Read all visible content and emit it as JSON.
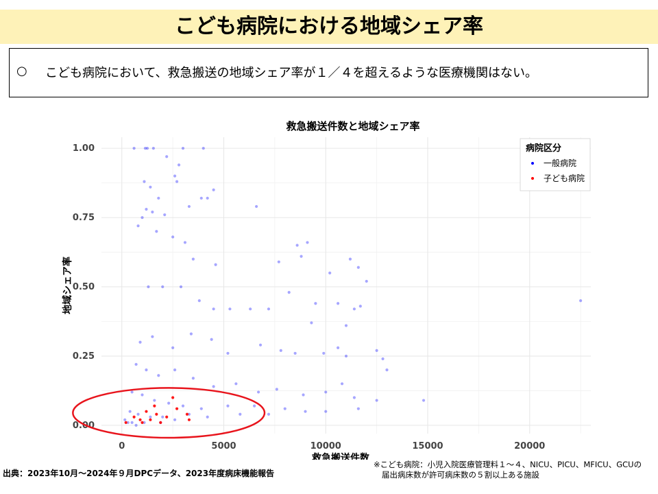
{
  "header": {
    "title": "こども病院における地域シェア率"
  },
  "notice": {
    "bullet": "○",
    "text": "こども病院において、救急搬送の地域シェア率が１／４を超えるような医療機関はない。"
  },
  "chart_data": {
    "type": "scatter",
    "title": "救急搬送件数と地域シェア率",
    "xlabel": "救急搬送件数",
    "ylabel": "地域シェア率",
    "xlim": [
      -1000,
      23000
    ],
    "ylim": [
      -0.03,
      1.04
    ],
    "x_ticks": [
      0,
      5000,
      10000,
      15000,
      20000
    ],
    "x_tick_labels": [
      "0",
      "5000",
      "10000",
      "15000",
      "20000"
    ],
    "y_ticks": [
      0,
      0.25,
      0.5,
      0.75,
      1.0
    ],
    "y_tick_labels": [
      "0.00",
      "0.25",
      "0.50",
      "0.75",
      "1.00"
    ],
    "grid": true,
    "legend": {
      "title": "病院区分",
      "placement": "top-right",
      "entries": [
        "一般病院",
        "子ども病院"
      ]
    },
    "series": [
      {
        "name": "一般病院",
        "color": "#0000ff",
        "points": [
          [
            600,
            1.0
          ],
          [
            1150,
            1.0
          ],
          [
            1250,
            1.0
          ],
          [
            1550,
            1.0
          ],
          [
            3000,
            1.0
          ],
          [
            4000,
            1.0
          ],
          [
            2200,
            0.97
          ],
          [
            2800,
            0.94
          ],
          [
            2700,
            0.88
          ],
          [
            2600,
            0.9
          ],
          [
            1100,
            0.88
          ],
          [
            1400,
            0.86
          ],
          [
            4500,
            0.85
          ],
          [
            1800,
            0.82
          ],
          [
            3900,
            0.82
          ],
          [
            4200,
            0.82
          ],
          [
            3300,
            0.79
          ],
          [
            6600,
            0.79
          ],
          [
            1200,
            0.78
          ],
          [
            1500,
            0.77
          ],
          [
            2100,
            0.76
          ],
          [
            1000,
            0.75
          ],
          [
            800,
            0.72
          ],
          [
            1700,
            0.7
          ],
          [
            2500,
            0.68
          ],
          [
            3100,
            0.66
          ],
          [
            3500,
            0.6
          ],
          [
            4600,
            0.58
          ],
          [
            7700,
            0.59
          ],
          [
            8600,
            0.65
          ],
          [
            9100,
            0.66
          ],
          [
            8800,
            0.61
          ],
          [
            11200,
            0.6
          ],
          [
            10200,
            0.55
          ],
          [
            11600,
            0.57
          ],
          [
            12000,
            0.52
          ],
          [
            1300,
            0.5
          ],
          [
            2000,
            0.5
          ],
          [
            2900,
            0.5
          ],
          [
            3800,
            0.45
          ],
          [
            4500,
            0.42
          ],
          [
            5300,
            0.42
          ],
          [
            6300,
            0.42
          ],
          [
            7200,
            0.42
          ],
          [
            8200,
            0.48
          ],
          [
            9500,
            0.44
          ],
          [
            10600,
            0.44
          ],
          [
            11700,
            0.43
          ],
          [
            9300,
            0.37
          ],
          [
            11400,
            0.42
          ],
          [
            11000,
            0.36
          ],
          [
            900,
            0.3
          ],
          [
            1500,
            0.32
          ],
          [
            2500,
            0.28
          ],
          [
            3400,
            0.33
          ],
          [
            4400,
            0.31
          ],
          [
            5200,
            0.26
          ],
          [
            6800,
            0.29
          ],
          [
            7800,
            0.27
          ],
          [
            8500,
            0.26
          ],
          [
            9900,
            0.26
          ],
          [
            10600,
            0.28
          ],
          [
            11000,
            0.25
          ],
          [
            12500,
            0.27
          ],
          [
            12800,
            0.24
          ],
          [
            13000,
            0.2
          ],
          [
            700,
            0.22
          ],
          [
            1200,
            0.2
          ],
          [
            1800,
            0.18
          ],
          [
            2600,
            0.2
          ],
          [
            3500,
            0.17
          ],
          [
            4500,
            0.14
          ],
          [
            5600,
            0.15
          ],
          [
            6700,
            0.12
          ],
          [
            7600,
            0.13
          ],
          [
            8900,
            0.11
          ],
          [
            10000,
            0.12
          ],
          [
            10800,
            0.15
          ],
          [
            11400,
            0.1
          ],
          [
            12500,
            0.09
          ],
          [
            14800,
            0.09
          ],
          [
            500,
            0.12
          ],
          [
            1000,
            0.11
          ],
          [
            1600,
            0.09
          ],
          [
            2300,
            0.08
          ],
          [
            3000,
            0.07
          ],
          [
            3900,
            0.06
          ],
          [
            5200,
            0.07
          ],
          [
            6500,
            0.07
          ],
          [
            8000,
            0.06
          ],
          [
            9000,
            0.05
          ],
          [
            10000,
            0.05
          ],
          [
            11600,
            0.06
          ],
          [
            400,
            0.05
          ],
          [
            800,
            0.04
          ],
          [
            1400,
            0.03
          ],
          [
            2000,
            0.03
          ],
          [
            2600,
            0.02
          ],
          [
            3300,
            0.04
          ],
          [
            4200,
            0.03
          ],
          [
            5800,
            0.04
          ],
          [
            7200,
            0.04
          ],
          [
            150,
            0.02
          ],
          [
            300,
            0.01
          ],
          [
            500,
            0.01
          ],
          [
            700,
            0.0
          ],
          [
            1100,
            0.01
          ],
          [
            1900,
            0.01
          ],
          [
            22500,
            0.45
          ]
        ]
      },
      {
        "name": "子ども病院",
        "color": "#ff0000",
        "points": [
          [
            200,
            0.01
          ],
          [
            600,
            0.03
          ],
          [
            900,
            0.02
          ],
          [
            1200,
            0.05
          ],
          [
            1400,
            0.02
          ],
          [
            1700,
            0.04
          ],
          [
            1900,
            0.01
          ],
          [
            2200,
            0.03
          ],
          [
            2500,
            0.1
          ],
          [
            2700,
            0.06
          ],
          [
            3200,
            0.04
          ],
          [
            3300,
            0.02
          ],
          [
            1000,
            0.01
          ],
          [
            1600,
            0.07
          ]
        ]
      }
    ],
    "annotation": {
      "type": "ellipse",
      "color": "#e8141c",
      "center": [
        2300,
        0.045
      ],
      "rx": 4700,
      "ry": 0.09
    }
  },
  "footer": {
    "source": "出典：2023年10月～2024年９月DPCデータ、2023年度病床機能報告",
    "note_line1": "※こども病院：小児入院医療管理料１～４、NICU、PICU、MFICU、GCUの",
    "note_line2": "届出病床数が許可病床数の５割以上ある施設"
  }
}
